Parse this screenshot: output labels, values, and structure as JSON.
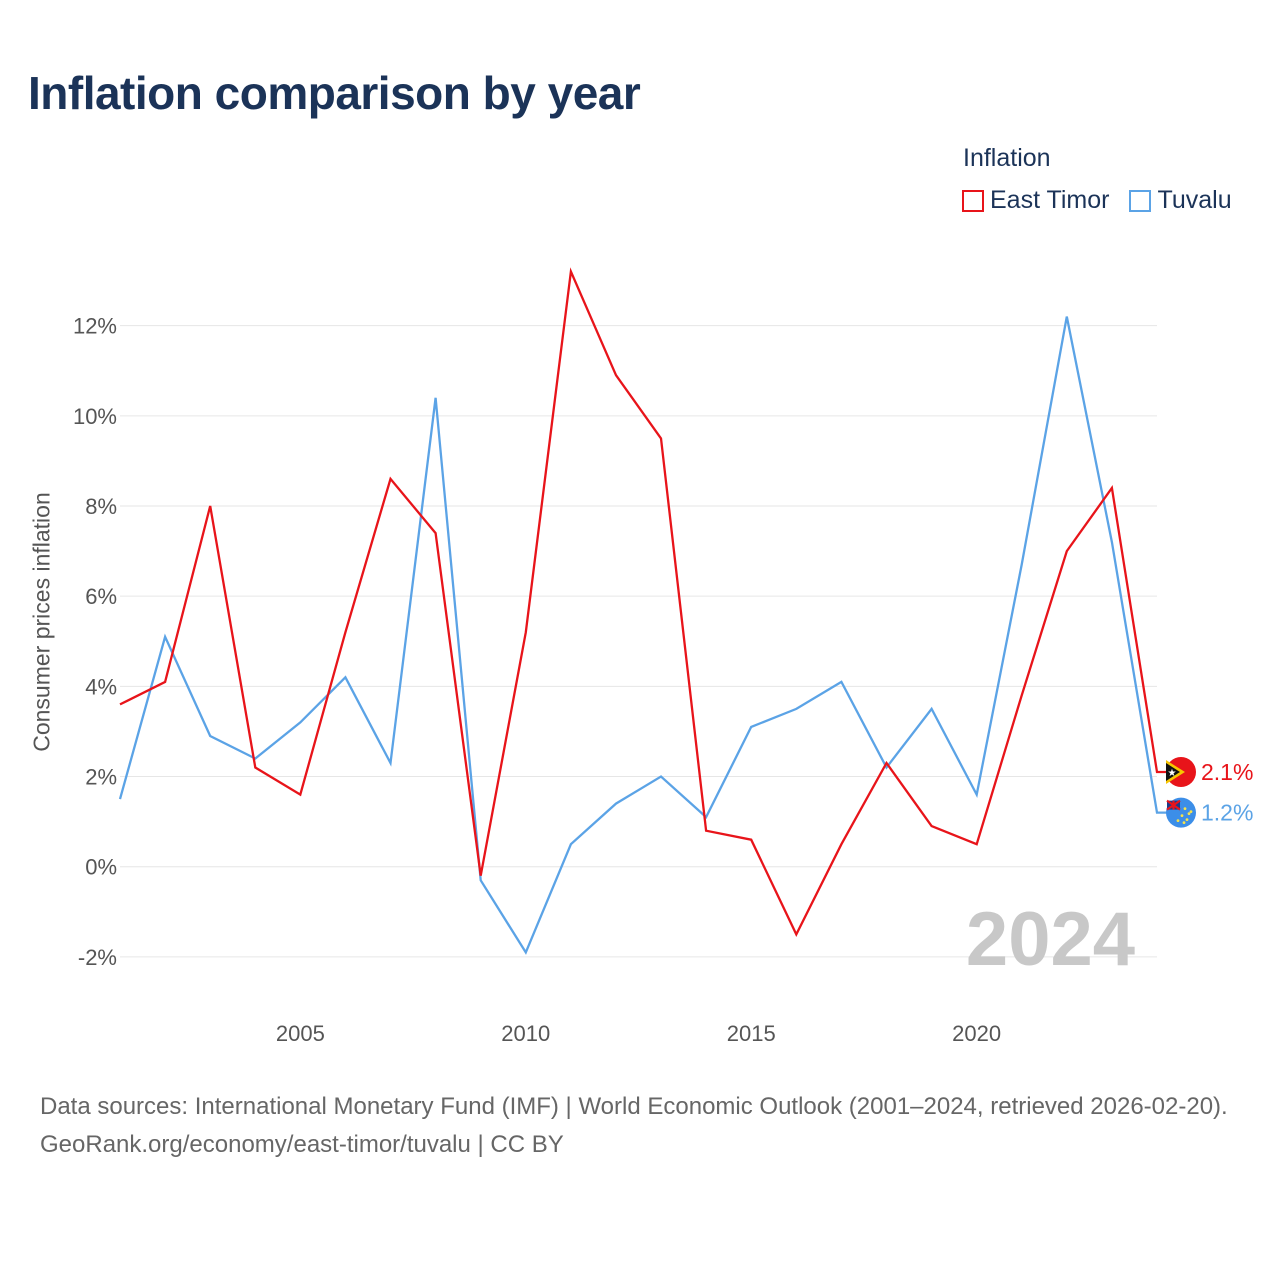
{
  "title": "Inflation comparison by year",
  "legend": {
    "title": "Inflation",
    "items": [
      {
        "name": "East Timor",
        "color": "#e8141a"
      },
      {
        "name": "Tuvalu",
        "color": "#5ba3e6"
      }
    ]
  },
  "colors": {
    "east_timor": "#e8141a",
    "tuvalu": "#5ba3e6",
    "year_watermark": "#c8c8c8",
    "grid": "#e6e6e6"
  },
  "footer": {
    "source": "Data sources: International Monetary Fund (IMF) | World Economic Outlook (2001–2024, retrieved 2026-02-20).",
    "attribution": "GeoRank.org/economy/east-timor/tuvalu | CC BY"
  },
  "chart_data": {
    "type": "line",
    "title": "Inflation comparison by year",
    "xlabel": "",
    "ylabel": "Consumer prices inflation",
    "x": [
      2001,
      2002,
      2003,
      2004,
      2005,
      2006,
      2007,
      2008,
      2009,
      2010,
      2011,
      2012,
      2013,
      2014,
      2015,
      2016,
      2017,
      2018,
      2019,
      2020,
      2021,
      2022,
      2023,
      2024
    ],
    "xlim": [
      2001,
      2024
    ],
    "ylim": [
      -3,
      13.5
    ],
    "x_ticks": [
      2005,
      2010,
      2015,
      2020
    ],
    "y_ticks": [
      -2,
      0,
      2,
      4,
      6,
      8,
      10,
      12
    ],
    "y_tick_labels": [
      "-2%",
      "0%",
      "2%",
      "4%",
      "6%",
      "8%",
      "10%",
      "12%"
    ],
    "year_label": "2024",
    "grid": true,
    "legend_position": "top-right",
    "series": [
      {
        "name": "East Timor",
        "color": "#e8141a",
        "values": [
          3.6,
          4.1,
          8.0,
          2.2,
          1.6,
          5.2,
          8.6,
          7.4,
          -0.2,
          5.2,
          13.2,
          10.9,
          9.5,
          0.8,
          0.6,
          -1.5,
          0.5,
          2.3,
          0.9,
          0.5,
          3.8,
          7.0,
          8.4,
          2.1
        ],
        "end_label": "2.1%"
      },
      {
        "name": "Tuvalu",
        "color": "#5ba3e6",
        "values": [
          1.5,
          5.1,
          2.9,
          2.4,
          3.2,
          4.2,
          2.3,
          10.4,
          -0.3,
          -1.9,
          0.5,
          1.4,
          2.0,
          1.1,
          3.1,
          3.5,
          4.1,
          2.2,
          3.5,
          1.6,
          6.7,
          12.2,
          7.2,
          1.2
        ],
        "end_label": "1.2%"
      }
    ]
  }
}
